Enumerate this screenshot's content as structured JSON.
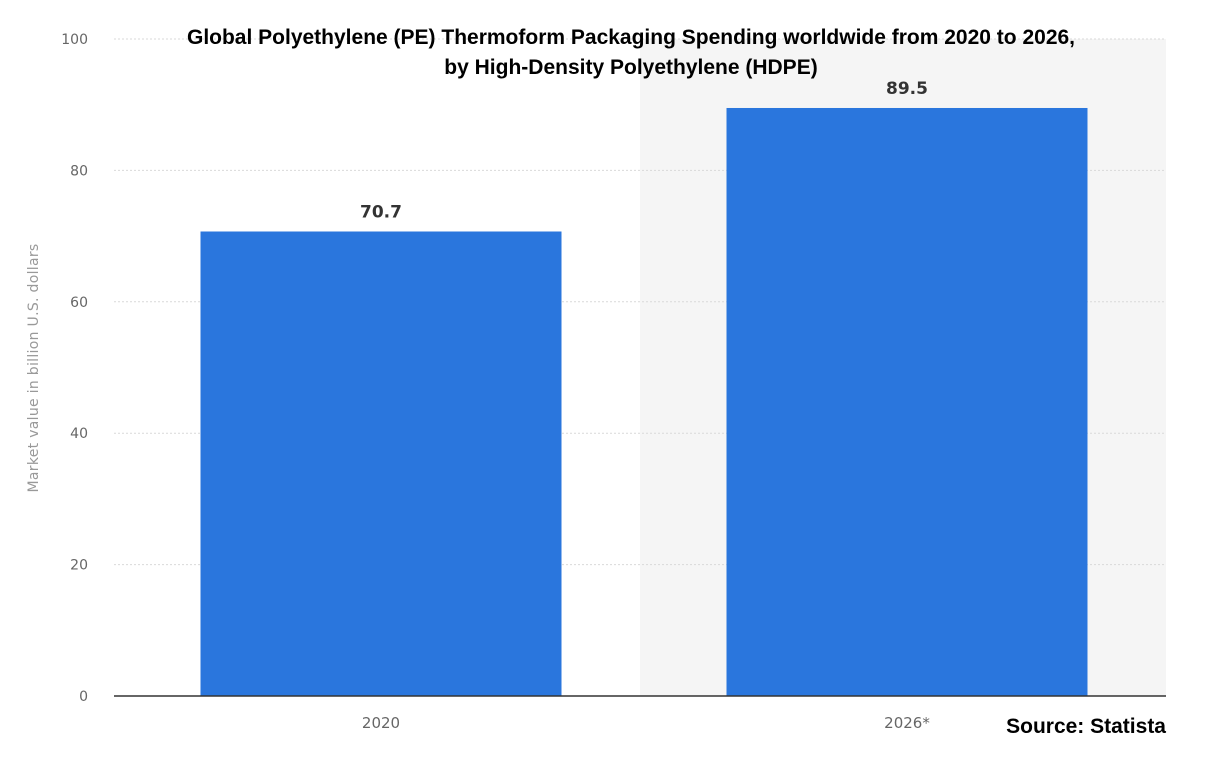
{
  "chart_data": {
    "type": "bar",
    "title": "Global Polyethylene (PE) Thermoform Packaging Spending worldwide from 2020 to 2026,",
    "subtitle": "by High-Density Polyethylene (HDPE)",
    "categories": [
      "2020",
      "2026*"
    ],
    "values": [
      70.7,
      89.5
    ],
    "data_labels": [
      "70.7",
      "89.5"
    ],
    "xlabel": "",
    "ylabel": "Market value in billion U.S. dollars",
    "ylim": [
      0,
      100
    ],
    "yticks": [
      "0",
      "20",
      "40",
      "60",
      "80",
      "100"
    ],
    "grid": true,
    "forecast_shading_category": "2026*",
    "source": "Source: Statista"
  },
  "colors": {
    "bar": "#2A76DD",
    "grid": "#d9d9d9",
    "axis": "#333333",
    "tick_label": "#666666",
    "forecast_bg": "#f5f5f5"
  }
}
